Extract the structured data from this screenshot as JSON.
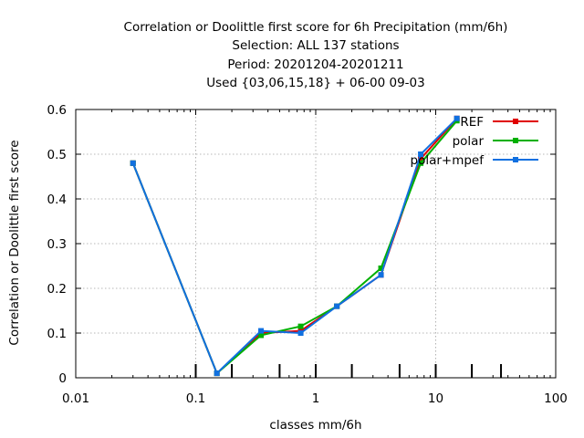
{
  "chart_data": {
    "type": "line",
    "title_lines": [
      "Correlation or Doolittle first score  for 6h Precipitation (mm/6h)",
      "Selection: ALL    137 stations",
      "Period: 20201204-20201211",
      "Used {03,06,15,18} + 06-00 09-03"
    ],
    "xlabel": "classes mm/6h",
    "ylabel": "Correlation or Doolittle first score",
    "x_scale": "log",
    "xlim": [
      0.01,
      100
    ],
    "ylim": [
      0,
      0.6
    ],
    "x_ticks": [
      0.01,
      0.1,
      1,
      10,
      100
    ],
    "x_tick_labels": [
      "0.01",
      "0.1",
      "1",
      "10",
      "100"
    ],
    "y_ticks": [
      0,
      0.1,
      0.2,
      0.3,
      0.4,
      0.5,
      0.6
    ],
    "y_tick_labels": [
      "0",
      "0.1",
      "0.2",
      "0.3",
      "0.4",
      "0.5",
      "0.6"
    ],
    "class_marks": [
      0.1,
      0.2,
      0.5,
      1,
      2,
      5,
      10,
      20,
      35
    ],
    "grid": true,
    "legend_position": "top-right",
    "x": [
      0.03,
      0.15,
      0.35,
      0.75,
      1.5,
      3.5,
      7.5,
      15
    ],
    "series": [
      {
        "name": "REF",
        "color": "#e00000",
        "values": [
          0.48,
          0.01,
          0.1,
          0.105,
          0.16,
          0.23,
          0.49,
          0.58
        ]
      },
      {
        "name": "polar",
        "color": "#00b000",
        "values": [
          0.48,
          0.01,
          0.095,
          0.115,
          0.16,
          0.245,
          0.48,
          0.575
        ]
      },
      {
        "name": "polar+mpef",
        "color": "#1070e0",
        "values": [
          0.48,
          0.01,
          0.105,
          0.1,
          0.16,
          0.23,
          0.5,
          0.58
        ]
      }
    ]
  }
}
